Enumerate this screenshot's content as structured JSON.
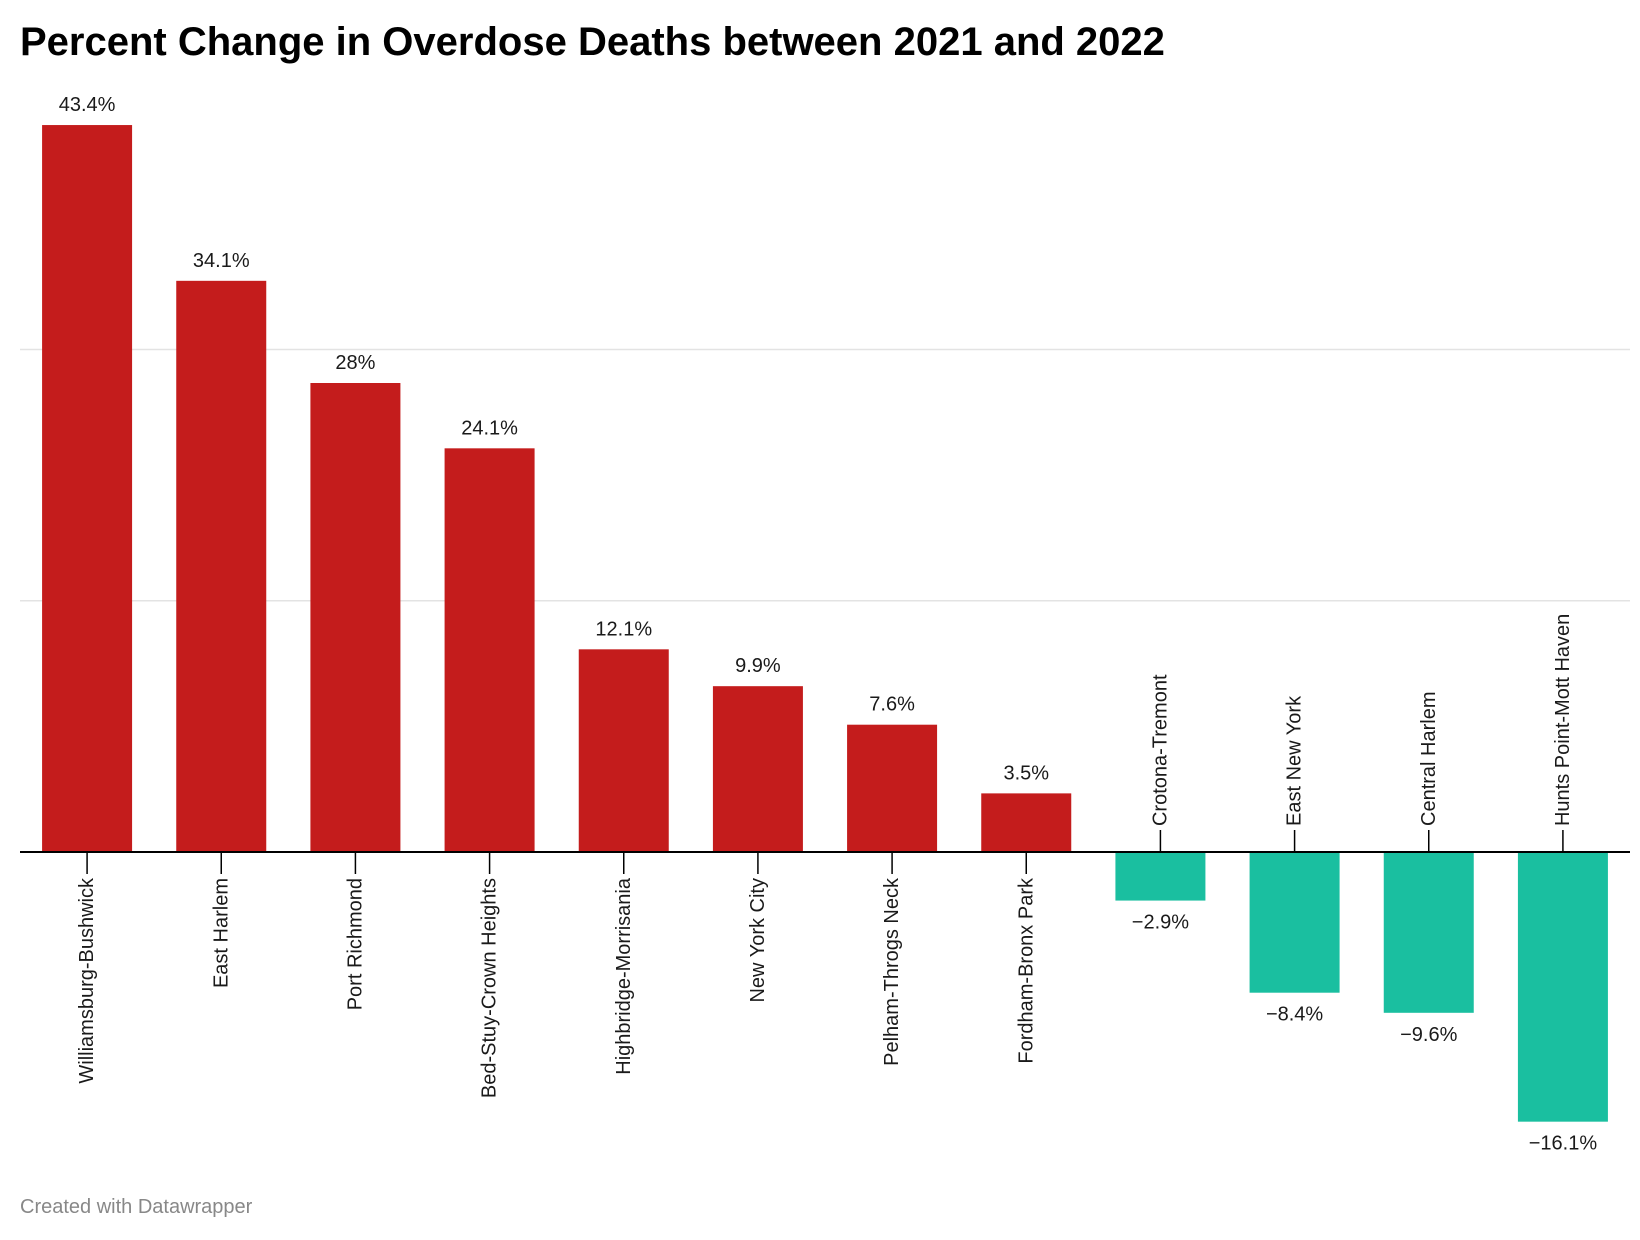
{
  "title": "Percent Change in Overdose Deaths between 2021 and 2022",
  "footer": "Created with Datawrapper",
  "colors": {
    "positive": "#c41c1c",
    "negative": "#1abfa0",
    "grid": "#e3e3e3",
    "axis": "#000000",
    "text": "#1a1a1a"
  },
  "chart_data": {
    "type": "bar",
    "title": "Percent Change in Overdose Deaths between 2021 and 2022",
    "xlabel": "",
    "ylabel": "",
    "grid": true,
    "categories": [
      "Williamsburg-Bushwick",
      "East Harlem",
      "Port Richmond",
      "Bed-Stuy-Crown Heights",
      "Highbridge-Morrisania",
      "New York City",
      "Pelham-Throgs Neck",
      "Fordham-Bronx Park",
      "Crotona-Tremont",
      "East New York",
      "Central Harlem",
      "Hunts Point-Mott Haven"
    ],
    "values": [
      43.4,
      34.1,
      28,
      24.1,
      12.1,
      9.9,
      7.6,
      3.5,
      -2.9,
      -8.4,
      -9.6,
      -16.1
    ],
    "data_labels": [
      "43.4%",
      "34.1%",
      "28%",
      "24.1%",
      "12.1%",
      "9.9%",
      "7.6%",
      "3.5%",
      "−2.9%",
      "−8.4%",
      "−9.6%",
      "−16.1%"
    ],
    "ylim": [
      -16.1,
      43.4
    ],
    "gridlines": [
      0,
      15,
      30
    ]
  }
}
